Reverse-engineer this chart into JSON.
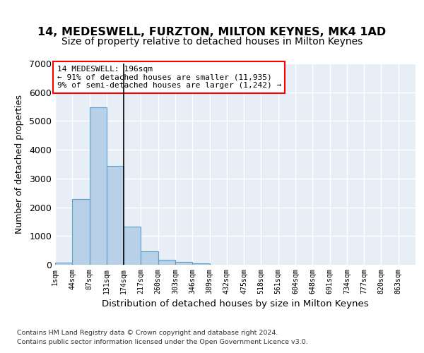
{
  "title1": "14, MEDESWELL, FURZTON, MILTON KEYNES, MK4 1AD",
  "title2": "Size of property relative to detached houses in Milton Keynes",
  "xlabel": "Distribution of detached houses by size in Milton Keynes",
  "ylabel": "Number of detached properties",
  "footer1": "Contains HM Land Registry data © Crown copyright and database right 2024.",
  "footer2": "Contains public sector information licensed under the Open Government Licence v3.0.",
  "annotation_line1": "14 MEDESWELL: 196sqm",
  "annotation_line2": "← 91% of detached houses are smaller (11,935)",
  "annotation_line3": "9% of semi-detached houses are larger (1,242) →",
  "bar_color": "#b8d0e8",
  "bar_edge_color": "#5a9fc8",
  "categories": [
    "1sqm",
    "44sqm",
    "87sqm",
    "131sqm",
    "174sqm",
    "217sqm",
    "260sqm",
    "303sqm",
    "346sqm",
    "389sqm",
    "432sqm",
    "475sqm",
    "518sqm",
    "561sqm",
    "604sqm",
    "648sqm",
    "691sqm",
    "734sqm",
    "777sqm",
    "820sqm",
    "863sqm"
  ],
  "values": [
    80,
    2280,
    5480,
    3450,
    1320,
    460,
    175,
    95,
    55,
    0,
    0,
    0,
    0,
    0,
    0,
    0,
    0,
    0,
    0,
    0,
    0
  ],
  "ylim": [
    0,
    7000
  ],
  "yticks": [
    0,
    1000,
    2000,
    3000,
    4000,
    5000,
    6000,
    7000
  ],
  "vline_x": 4,
  "plot_bg_color": "#e8eef5",
  "grid_color": "#ffffff",
  "title1_fontsize": 11.5,
  "title2_fontsize": 10,
  "xlabel_fontsize": 9.5,
  "ylabel_fontsize": 9
}
